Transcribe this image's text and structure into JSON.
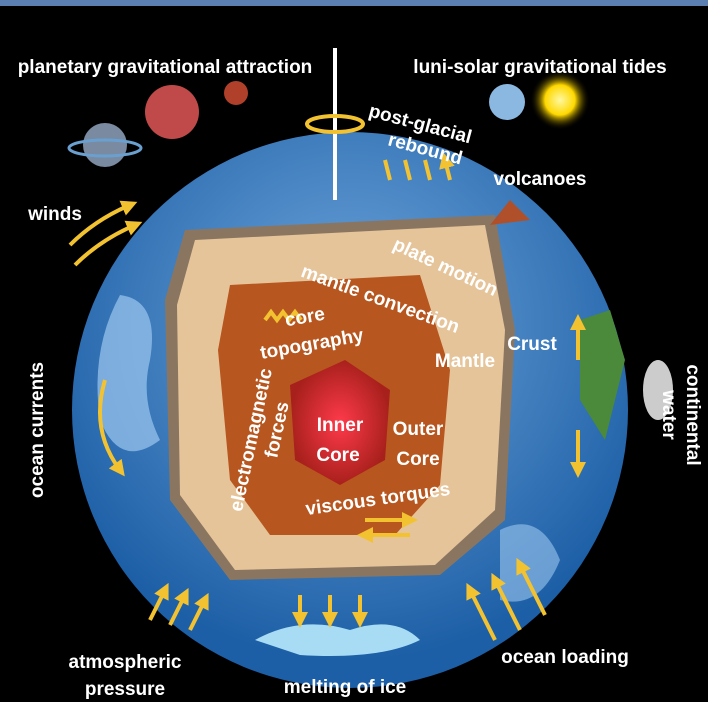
{
  "labels": {
    "planetary_attraction": "planetary gravitational attraction",
    "tides": "luni-solar gravitational tides",
    "rebound": [
      "post-glacial",
      "rebound"
    ],
    "volcanoes": "volcanoes",
    "winds": "winds",
    "plate_motion": "plate motion",
    "mantle_convection": "mantle convection",
    "core_topography": [
      "core",
      "topography"
    ],
    "mantle": "Mantle",
    "crust": "Crust",
    "continental_water": [
      "continental",
      "water"
    ],
    "ocean_currents": "ocean currents",
    "electromagnetic_forces": [
      "electromagnetic",
      "forces"
    ],
    "inner_core": [
      "Inner",
      "Core"
    ],
    "outer_core": [
      "Outer",
      "Core"
    ],
    "viscous_torques": "viscous torques",
    "atmospheric_pressure": [
      "atmospheric",
      "pressure"
    ],
    "melting_of_ice": "melting of ice",
    "ocean_loading": "ocean loading"
  }
}
